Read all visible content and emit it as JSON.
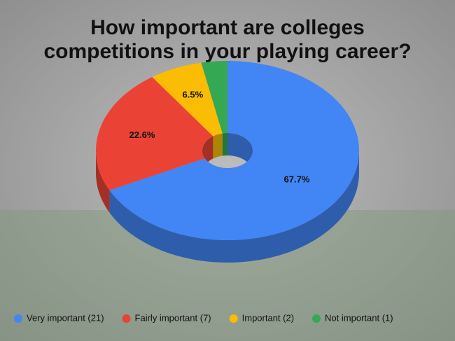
{
  "chart_data": {
    "type": "pie",
    "title": [
      "How important are colleges",
      "competitions in your playing career?"
    ],
    "categories": [
      "Very important (21)",
      "Fairly important (7)",
      "Important (2)",
      "Not important (1)"
    ],
    "values": [
      67.7,
      22.6,
      6.5,
      3.2
    ],
    "value_labels": [
      "67.7%",
      "22.6%",
      "6.5%",
      null
    ],
    "colors": [
      "#4285f4",
      "#ea4335",
      "#fbbc04",
      "#34a853"
    ],
    "legend": "bottom"
  }
}
